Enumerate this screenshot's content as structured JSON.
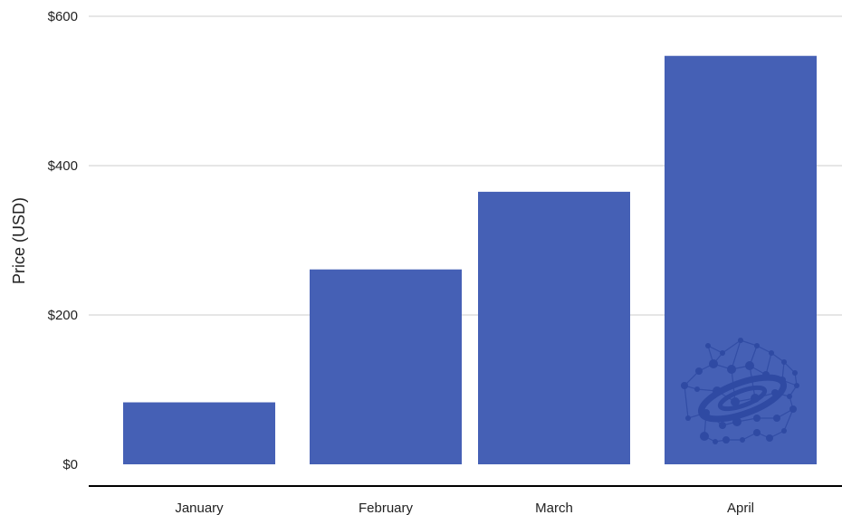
{
  "chart_data": {
    "type": "bar",
    "categories": [
      "January",
      "February",
      "March",
      "April"
    ],
    "values": [
      83,
      261,
      365,
      547
    ],
    "ylabel": "Price (USD)",
    "xlabel": "",
    "ylim": [
      0,
      600
    ],
    "yticks": [
      0,
      200,
      400,
      600
    ],
    "ytick_labels": [
      "$0",
      "$200",
      "$400",
      "$600"
    ],
    "grid": true,
    "colors": {
      "bar": "#4560b5",
      "grid": "#e6e6e6",
      "axis": "#000000",
      "text": "#222222",
      "logo": "#2f4aa3"
    },
    "watermark_icon": "network-globe-logo"
  }
}
